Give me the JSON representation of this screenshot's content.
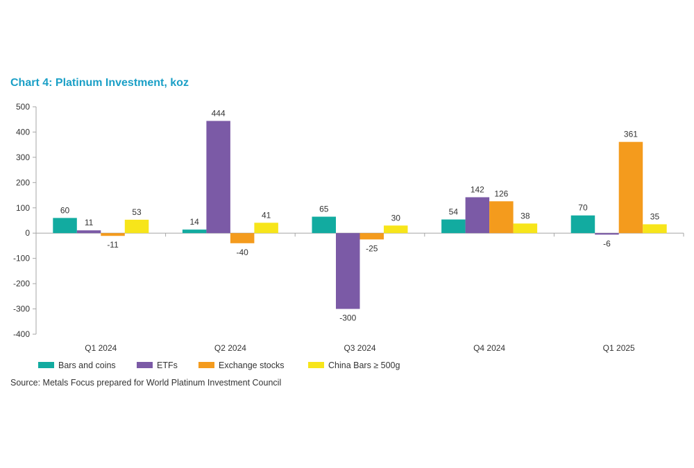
{
  "chart_data": {
    "type": "bar",
    "title": "Chart 4: Platinum Investment, koz",
    "xlabel": "",
    "ylabel": "",
    "ylim": [
      -400,
      500
    ],
    "yticks": [
      500,
      400,
      300,
      200,
      100,
      0,
      -100,
      -200,
      -300,
      -400
    ],
    "ytick_labels": [
      "500",
      "400",
      "300",
      "200",
      "100",
      "0",
      "-100",
      "-200",
      "-300",
      "-400"
    ],
    "categories": [
      "Q1 2024",
      "Q2 2024",
      "Q3 2024",
      "Q4 2024",
      "Q1 2025"
    ],
    "series": [
      {
        "name": "Bars and coins",
        "color": "#12aba0",
        "values": [
          60,
          14,
          65,
          54,
          70
        ]
      },
      {
        "name": "ETFs",
        "color": "#7b5aa6",
        "values": [
          11,
          444,
          -300,
          142,
          -6
        ]
      },
      {
        "name": "Exchange stocks",
        "color": "#f49b1d",
        "values": [
          -11,
          -40,
          -25,
          126,
          361
        ]
      },
      {
        "name": "China Bars ≥ 500g",
        "color": "#f7e51a",
        "values": [
          53,
          41,
          30,
          38,
          35
        ]
      }
    ],
    "legend_position": "bottom-left",
    "grid": false
  },
  "source_text": "Source: Metals Focus prepared for World Platinum Investment Council"
}
